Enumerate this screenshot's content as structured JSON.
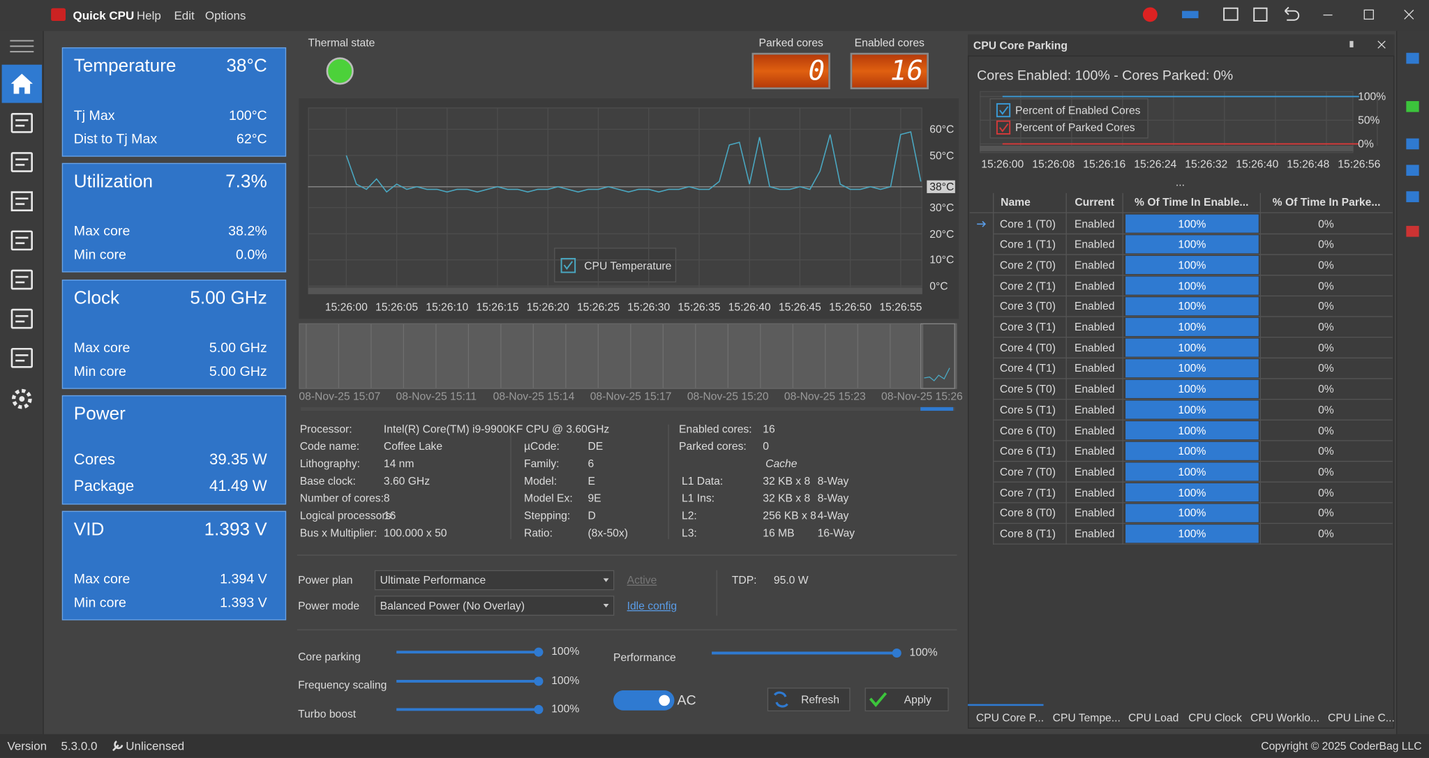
{
  "titlebar": {
    "app_name": "Quick CPU",
    "menu": [
      "Help",
      "Edit",
      "Options"
    ]
  },
  "tiles": [
    {
      "title": "Temperature",
      "value": "38°C",
      "rows": [
        [
          "Tj Max",
          "100°C"
        ],
        [
          "Dist to Tj Max",
          "62°C"
        ]
      ]
    },
    {
      "title": "Utilization",
      "value": "7.3%",
      "rows": [
        [
          "Max core",
          "38.2%"
        ],
        [
          "Min core",
          "0.0%"
        ]
      ]
    },
    {
      "title": "Clock",
      "value": "5.00 GHz",
      "rows": [
        [
          "Max core",
          "5.00 GHz"
        ],
        [
          "Min core",
          "5.00 GHz"
        ]
      ]
    },
    {
      "title": "Power",
      "rows": [
        [
          "Cores",
          "39.35 W"
        ],
        [
          "Package",
          "41.49 W"
        ]
      ]
    },
    {
      "title": "VID",
      "value": "1.393 V",
      "rows": [
        [
          "Max core",
          "1.394 V"
        ],
        [
          "Min core",
          "1.393 V"
        ]
      ]
    }
  ],
  "thermal_state": {
    "label": "Thermal state"
  },
  "core_counters": [
    {
      "label": "Parked cores",
      "value": "0"
    },
    {
      "label": "Enabled cores",
      "value": "16"
    }
  ],
  "timeline": {
    "labels": [
      "08-Nov-25 15:07",
      "08-Nov-25 15:11",
      "08-Nov-25 15:14",
      "08-Nov-25 15:17",
      "08-Nov-25 15:20",
      "08-Nov-25 15:23",
      "08-Nov-25 15:26"
    ]
  },
  "cpu_info": {
    "left": [
      [
        "Processor:",
        "Intel(R) Core(TM) i9-9900KF CPU @ 3.60GHz"
      ],
      [
        "Code name:",
        "Coffee Lake"
      ],
      [
        "Lithography:",
        "14 nm"
      ],
      [
        "Base clock:",
        "3.60 GHz"
      ],
      [
        "Number of cores:",
        "8"
      ],
      [
        "Logical processors:",
        "16"
      ],
      [
        "Bus x Multiplier:",
        "100.000 x 50"
      ]
    ],
    "middle": [
      [
        "µCode:",
        "DE"
      ],
      [
        "Family:",
        "6"
      ],
      [
        "Model:",
        "E"
      ],
      [
        "Model Ex:",
        "9E"
      ],
      [
        "Stepping:",
        "D"
      ],
      [
        "Ratio:",
        "(8x-50x)"
      ]
    ],
    "right": [
      [
        "Enabled cores:",
        "16"
      ],
      [
        "Parked cores:",
        "0"
      ]
    ],
    "cache_title": "Cache",
    "cache": [
      [
        "L1 Data:",
        "32 KB x 8",
        "8-Way"
      ],
      [
        "L1 Ins:",
        "32 KB x 8",
        "8-Way"
      ],
      [
        "L2:",
        "256 KB x 8",
        "4-Way"
      ],
      [
        "L3:",
        "16 MB",
        "16-Way"
      ]
    ]
  },
  "power": {
    "plan_label": "Power plan",
    "plan": "Ultimate Performance",
    "active": "Active",
    "mode_label": "Power mode",
    "mode": "Balanced Power (No Overlay)",
    "idle_config": "Idle config",
    "tdp_label": "TDP:",
    "tdp": "95.0 W"
  },
  "sliders": [
    {
      "label": "Core parking",
      "value": "100%"
    },
    {
      "label": "Frequency scaling",
      "value": "100%"
    },
    {
      "label": "Turbo boost",
      "value": "100%"
    },
    {
      "label": "Performance",
      "value": "100%"
    }
  ],
  "toggle_label": "AC",
  "buttons": [
    "Refresh",
    "Apply"
  ],
  "parking_panel": {
    "title": "CPU Core Parking",
    "summary": "Cores Enabled: 100% - Cores Parked: 0%",
    "more": "..."
  },
  "core_table": {
    "columns": [
      "Name",
      "Current",
      "% Of Time In Enable...",
      "% Of Time In Parke..."
    ],
    "rows": [
      [
        "Core 1 (T0)",
        "Enabled",
        "100%",
        "0%"
      ],
      [
        "Core 1 (T1)",
        "Enabled",
        "100%",
        "0%"
      ],
      [
        "Core 2 (T0)",
        "Enabled",
        "100%",
        "0%"
      ],
      [
        "Core 2 (T1)",
        "Enabled",
        "100%",
        "0%"
      ],
      [
        "Core 3 (T0)",
        "Enabled",
        "100%",
        "0%"
      ],
      [
        "Core 3 (T1)",
        "Enabled",
        "100%",
        "0%"
      ],
      [
        "Core 4 (T0)",
        "Enabled",
        "100%",
        "0%"
      ],
      [
        "Core 4 (T1)",
        "Enabled",
        "100%",
        "0%"
      ],
      [
        "Core 5 (T0)",
        "Enabled",
        "100%",
        "0%"
      ],
      [
        "Core 5 (T1)",
        "Enabled",
        "100%",
        "0%"
      ],
      [
        "Core 6 (T0)",
        "Enabled",
        "100%",
        "0%"
      ],
      [
        "Core 6 (T1)",
        "Enabled",
        "100%",
        "0%"
      ],
      [
        "Core 7 (T0)",
        "Enabled",
        "100%",
        "0%"
      ],
      [
        "Core 7 (T1)",
        "Enabled",
        "100%",
        "0%"
      ],
      [
        "Core 8 (T0)",
        "Enabled",
        "100%",
        "0%"
      ],
      [
        "Core 8 (T1)",
        "Enabled",
        "100%",
        "0%"
      ]
    ]
  },
  "tabs": [
    "CPU Core P...",
    "CPU Tempe...",
    "CPU Load",
    "CPU Clock",
    "CPU Worklo...",
    "CPU Line C..."
  ],
  "status": {
    "version_label": "Version",
    "version": "5.3.0.0",
    "license": "Unlicensed",
    "copyright": "Copyright © 2025 CoderBag LLC"
  },
  "chart_data": [
    {
      "type": "line",
      "x": [
        "15:26:00",
        null,
        null,
        null,
        null,
        "15:26:05",
        null,
        null,
        null,
        null,
        "15:26:10",
        null,
        null,
        null,
        null,
        "15:26:15",
        null,
        null,
        null,
        null,
        "15:26:20",
        null,
        null,
        null,
        null,
        "15:26:25",
        null,
        null,
        null,
        null,
        "15:26:30",
        null,
        null,
        null,
        null,
        "15:26:35",
        null,
        null,
        null,
        null,
        "15:26:40",
        null,
        null,
        null,
        null,
        "15:26:45",
        null,
        null,
        null,
        null,
        "15:26:50",
        null,
        null,
        null,
        null,
        "15:26:55",
        null,
        null
      ],
      "series": [
        {
          "name": "CPU Temperature",
          "color": "#4aa8c2",
          "values": [
            50,
            39,
            37,
            41,
            36,
            39,
            37,
            38,
            37,
            37,
            36,
            37,
            37,
            36,
            37,
            38,
            37,
            37,
            36,
            37,
            37,
            38,
            37,
            36,
            37,
            37,
            38,
            37,
            36,
            37,
            37,
            36,
            37,
            37,
            38,
            37,
            37,
            40,
            54,
            55,
            39,
            57,
            38,
            37,
            37,
            38,
            37,
            44,
            58,
            39,
            37,
            37,
            38,
            37,
            38,
            58,
            59,
            40
          ]
        }
      ],
      "ylim": [
        0,
        68
      ],
      "yticks": [
        {
          "value": 0,
          "label": "0°C"
        },
        {
          "value": 10,
          "label": "10°C"
        },
        {
          "value": 20,
          "label": "20°C"
        },
        {
          "value": 30,
          "label": "30°C"
        },
        {
          "value": 50,
          "label": "50°C"
        },
        {
          "value": 60,
          "label": "60°C"
        }
      ],
      "current_value": {
        "value": 38,
        "label": "38°C"
      },
      "grid": true
    },
    {
      "type": "line",
      "x": [
        "15:26:00",
        "15:26:08",
        "15:26:16",
        "15:26:24",
        "15:26:32",
        "15:26:40",
        "15:26:48",
        "15:26:56"
      ],
      "series": [
        {
          "name": "Percent of Enabled Cores",
          "color": "#3a9ad6",
          "values": [
            100,
            100,
            100,
            100,
            100,
            100,
            100,
            100
          ]
        },
        {
          "name": "Percent of Parked Cores",
          "color": "#d23a3a",
          "values": [
            0,
            0,
            0,
            0,
            0,
            0,
            0,
            0
          ]
        }
      ],
      "ylim": [
        0,
        100
      ],
      "yticks": [
        {
          "value": 0,
          "label": "0%"
        },
        {
          "value": 50,
          "label": "50%"
        },
        {
          "value": 100,
          "label": "100%"
        }
      ],
      "grid": true
    }
  ]
}
